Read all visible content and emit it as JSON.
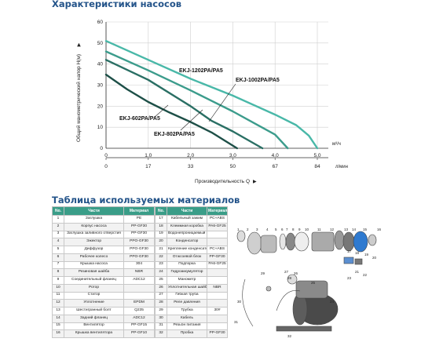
{
  "headings": {
    "characteristics": "Характеристики насосов",
    "materials": "Таблица используемых материалов"
  },
  "chart_data": {
    "type": "line",
    "ylabel": "Общий манометрический напор H(м)",
    "xlabel": "Производительность  Q",
    "x_unit_m3h": "м³/ч",
    "x_unit_lmin": "л/мин",
    "y_ticks": [
      "0",
      "10",
      "20",
      "30",
      "40",
      "50",
      "60"
    ],
    "x_ticks_m3h": [
      "0",
      "1.0",
      "2.0",
      "3.0",
      "4.0",
      "5.0"
    ],
    "x_ticks_lmin": [
      "0",
      "17",
      "33",
      "50",
      "67",
      "84"
    ],
    "xlim": [
      0,
      5.6
    ],
    "ylim": [
      0,
      60
    ],
    "series": [
      {
        "name": "EKJ-1202PA/PA5",
        "x": [
          0,
          1,
          2,
          3,
          4,
          4.5,
          4.8,
          5.0
        ],
        "y": [
          51,
          42,
          33,
          25,
          16,
          11,
          6,
          0
        ],
        "color": "#49b8a8"
      },
      {
        "name": "EKJ-1002PA/PA5",
        "x": [
          0,
          1,
          2,
          3,
          3.5,
          4.0,
          4.3
        ],
        "y": [
          46,
          37,
          27.5,
          17.5,
          12,
          6.5,
          0
        ],
        "color": "#3c9c8c"
      },
      {
        "name": "EKJ-802PA/PA5",
        "x": [
          0,
          1,
          2,
          2.5,
          3.0,
          3.7
        ],
        "y": [
          42,
          32.5,
          20,
          13,
          8,
          0
        ],
        "color": "#2a6f64"
      },
      {
        "name": "EKJ-602PA/PA5",
        "x": [
          0,
          0.5,
          1,
          1.5,
          2.0,
          2.5,
          3.1
        ],
        "y": [
          35,
          28,
          22,
          17,
          12.5,
          7.5,
          0
        ],
        "color": "#1d4f47"
      }
    ],
    "labels": [
      {
        "text": "EKJ-1202PA/PA5"
      },
      {
        "text": "EKJ-1002PA/PA5"
      },
      {
        "text": "EKJ-802PA/PA5"
      },
      {
        "text": "EKJ-602PA/PA5"
      }
    ]
  },
  "materials": {
    "headers": [
      "No.",
      "Части",
      "Материал"
    ],
    "left_rows": [
      [
        "1",
        "Заглушка",
        "PE"
      ],
      [
        "2",
        "Корпус насоса",
        "PP-GF30"
      ],
      [
        "3",
        "Заглушка заливного отверстия",
        "PP-GF30"
      ],
      [
        "4",
        "Эжектор",
        "PPO-GF30"
      ],
      [
        "5",
        "Диффузор",
        "PPO-GF30"
      ],
      [
        "6",
        "Рабочее колесо",
        "PPO-GF30"
      ],
      [
        "7",
        "Крышка насоса",
        "304"
      ],
      [
        "8",
        "Резиновая шайба",
        "NBR"
      ],
      [
        "9",
        "Соединительный фланец",
        "ADC12"
      ],
      [
        "10",
        "Ротор",
        ""
      ],
      [
        "11",
        "Статор",
        ""
      ],
      [
        "12",
        "Уплотнение",
        "EPDM"
      ],
      [
        "13",
        "Шестигранный болт",
        "Q235"
      ],
      [
        "14",
        "Задний фланец",
        "ADC12"
      ],
      [
        "15",
        "Вентилятор",
        "PP-GF15"
      ],
      [
        "16",
        "Крышка вентилятора",
        "PP-GF10"
      ]
    ],
    "right_rows": [
      [
        "17",
        "Кабельный зажим",
        "PC+ABS"
      ],
      [
        "18",
        "Клеммная коробка",
        "PA6-GF25"
      ],
      [
        "19",
        "Водонепроницаемый выключатель",
        ""
      ],
      [
        "20",
        "Конденсатор",
        ""
      ],
      [
        "21",
        "Крепление конденсатора",
        "PC+ABS"
      ],
      [
        "22",
        "Отжсоевой блок",
        "PP-GF30"
      ],
      [
        "23",
        "Подпорка",
        "PA6-GF25"
      ],
      [
        "24",
        "Гидроаккумулятор",
        ""
      ],
      [
        "25",
        "Манометр",
        ""
      ],
      [
        "26",
        "Уплотнительная шайба",
        "NBR"
      ],
      [
        "27",
        "Гибкая труба",
        ""
      ],
      [
        "28",
        "Реле давления",
        ""
      ],
      [
        "29",
        "Трубка",
        "30#"
      ],
      [
        "30",
        "Кабель",
        ""
      ],
      [
        "31",
        "Резьбн питания",
        ""
      ],
      [
        "32",
        "Пробка",
        "PP-GF30"
      ]
    ]
  },
  "diagram": {
    "callouts": [
      "1",
      "2",
      "3",
      "4",
      "5",
      "6",
      "7",
      "8",
      "9",
      "10",
      "11",
      "12",
      "13",
      "14",
      "15",
      "16",
      "17",
      "18",
      "19",
      "20",
      "21",
      "22",
      "23",
      "24",
      "25",
      "26",
      "27",
      "28",
      "29",
      "30",
      "31",
      "32"
    ]
  }
}
